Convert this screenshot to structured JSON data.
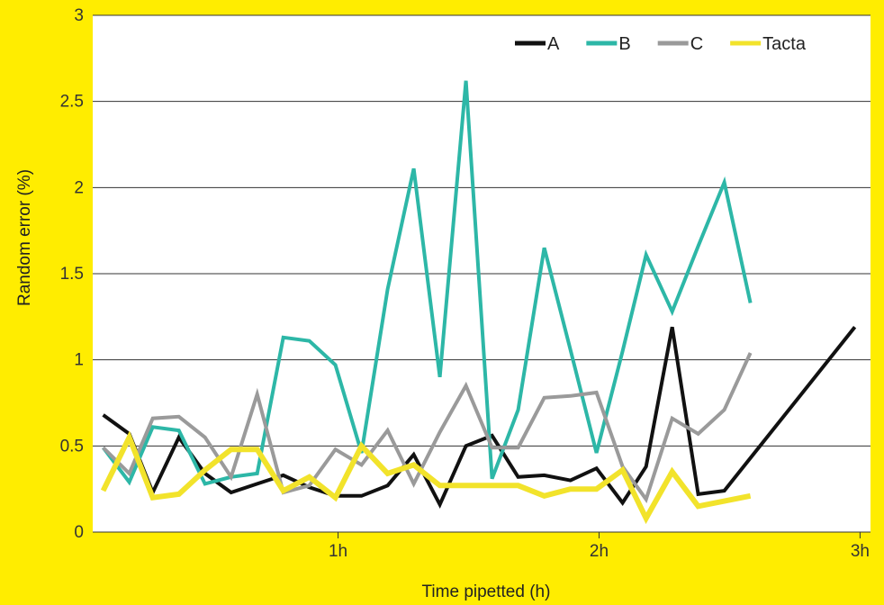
{
  "chart_data": {
    "type": "line",
    "xlabel": "Time pipetted (h)",
    "ylabel": "Random error (%)",
    "ylim": [
      0,
      3
    ],
    "yticks": [
      {
        "value": 0,
        "label": "0"
      },
      {
        "value": 0.5,
        "label": "0.5"
      },
      {
        "value": 1,
        "label": "1"
      },
      {
        "value": 1.5,
        "label": "1.5"
      },
      {
        "value": 2,
        "label": "2"
      },
      {
        "value": 2.5,
        "label": "2.5"
      },
      {
        "value": 3,
        "label": "3"
      }
    ],
    "xlim": [
      0.06,
      3.04
    ],
    "xticks": [
      {
        "value": 1,
        "label": "1h"
      },
      {
        "value": 2,
        "label": "2h"
      },
      {
        "value": 3,
        "label": "3h"
      }
    ],
    "grid": "horizontal",
    "legend_position": "top-right",
    "x": [
      0.1,
      0.2,
      0.29,
      0.39,
      0.49,
      0.59,
      0.69,
      0.79,
      0.89,
      0.99,
      1.09,
      1.19,
      1.29,
      1.39,
      1.49,
      1.59,
      1.69,
      1.79,
      1.89,
      1.99,
      2.09,
      2.18,
      2.28,
      2.38,
      2.48,
      2.58,
      2.68,
      2.78,
      2.88,
      2.98
    ],
    "series": [
      {
        "name": "A",
        "color": "#111111",
        "values": [
          0.68,
          0.57,
          0.23,
          0.55,
          0.34,
          0.23,
          0.28,
          0.33,
          0.26,
          0.21,
          0.21,
          0.27,
          0.45,
          0.16,
          0.5,
          0.56,
          0.32,
          0.33,
          0.3,
          0.37,
          0.17,
          0.38,
          1.19,
          0.22,
          0.24,
          null,
          null,
          null,
          null,
          1.19
        ]
      },
      {
        "name": "B",
        "color": "#2DB7A7",
        "values": [
          0.49,
          0.29,
          0.61,
          0.59,
          0.28,
          0.32,
          0.34,
          1.13,
          1.11,
          0.97,
          0.46,
          1.41,
          2.11,
          0.9,
          2.62,
          0.31,
          0.71,
          1.65,
          1.06,
          0.46,
          1.05,
          1.61,
          1.28,
          1.66,
          2.03,
          1.33,
          null,
          null,
          null,
          null
        ]
      },
      {
        "name": "C",
        "color": "#9A9A9A",
        "values": [
          0.49,
          0.34,
          0.66,
          0.67,
          0.55,
          0.32,
          0.8,
          0.23,
          0.27,
          0.48,
          0.39,
          0.59,
          0.28,
          0.58,
          0.85,
          0.49,
          0.49,
          0.78,
          0.79,
          0.81,
          0.38,
          0.19,
          0.66,
          0.57,
          0.71,
          1.04,
          null,
          null,
          null,
          null
        ]
      },
      {
        "name": "Tacta",
        "color": "#F2E32B",
        "values": [
          0.24,
          0.55,
          0.2,
          0.22,
          0.36,
          0.48,
          0.48,
          0.24,
          0.32,
          0.2,
          0.5,
          0.34,
          0.39,
          0.27,
          0.27,
          0.27,
          0.27,
          0.21,
          0.25,
          0.25,
          0.36,
          0.08,
          0.35,
          0.15,
          0.18,
          0.21,
          null,
          null,
          null,
          null
        ]
      }
    ]
  }
}
